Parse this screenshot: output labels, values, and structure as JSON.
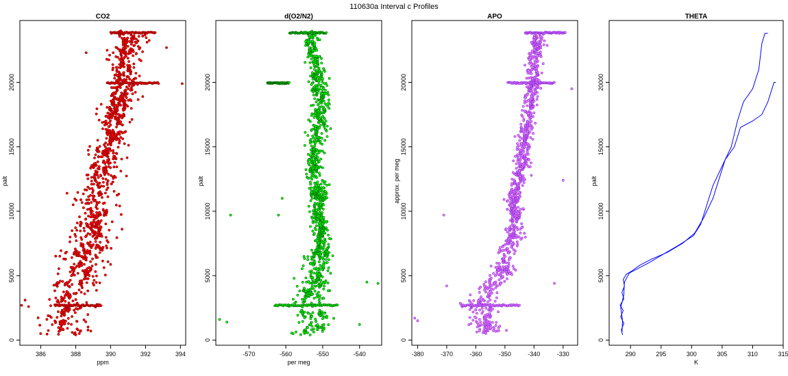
{
  "title": "110630a   Interval c Profiles",
  "chart_data": [
    {
      "type": "scatter",
      "title": "CO2",
      "xlabel": "ppm",
      "ylabel": "palt",
      "xlim": [
        384.8,
        394.3
      ],
      "ylim": [
        -400,
        24800
      ],
      "xticks": [
        386,
        388,
        390,
        392,
        394
      ],
      "yticks": [
        0,
        5000,
        10000,
        15000,
        20000
      ],
      "color": "#ff0000",
      "edge_color": "#8b0000",
      "profile": [
        [
          387.6,
          400
        ],
        [
          387.5,
          1500
        ],
        [
          387.7,
          2500
        ],
        [
          387.5,
          3500
        ],
        [
          388.2,
          5000
        ],
        [
          388.4,
          6500
        ],
        [
          388.9,
          8000
        ],
        [
          389.1,
          9500
        ],
        [
          389.0,
          11000
        ],
        [
          389.5,
          12500
        ],
        [
          389.8,
          14000
        ],
        [
          390.0,
          15500
        ],
        [
          390.2,
          17000
        ],
        [
          390.6,
          18500
        ],
        [
          391.0,
          20000
        ],
        [
          390.8,
          21500
        ],
        [
          391.1,
          23000
        ],
        [
          391.2,
          23800
        ]
      ],
      "spreads": [
        [
          2500,
          2.4
        ],
        [
          12000,
          1.8
        ],
        [
          20000,
          1.5
        ],
        [
          23500,
          1.5
        ]
      ],
      "level_bands": [
        {
          "y": 2700,
          "x": [
            386.8,
            389.5
          ]
        },
        {
          "y": 19950,
          "x": [
            389.8,
            392.8
          ]
        },
        {
          "y": 23850,
          "x": [
            390.0,
            392.6
          ]
        }
      ],
      "outliers": [
        [
          385.1,
          3100
        ],
        [
          385.3,
          2600
        ],
        [
          384.9,
          2700
        ],
        [
          394.1,
          19900
        ],
        [
          388.6,
          22300
        ],
        [
          387.5,
          11400
        ],
        [
          393.2,
          22700
        ]
      ]
    },
    {
      "type": "scatter",
      "title": "d(O2/N2)",
      "xlabel": "per meg",
      "ylabel": "palt",
      "xlim": [
        -579,
        -534
      ],
      "ylim": [
        -400,
        24800
      ],
      "xticks": [
        -570,
        -560,
        -550,
        -540
      ],
      "yticks": [
        0,
        5000,
        10000,
        15000,
        20000
      ],
      "color": "#00ff00",
      "edge_color": "#006400",
      "profile": [
        [
          -553,
          600
        ],
        [
          -552,
          1500
        ],
        [
          -554,
          2500
        ],
        [
          -553,
          3500
        ],
        [
          -552,
          5000
        ],
        [
          -551,
          6500
        ],
        [
          -550,
          8000
        ],
        [
          -551,
          9500
        ],
        [
          -551,
          11000
        ],
        [
          -552,
          12500
        ],
        [
          -552,
          14000
        ],
        [
          -552,
          15500
        ],
        [
          -551,
          17000
        ],
        [
          -550,
          18500
        ],
        [
          -551,
          20000
        ],
        [
          -552,
          21500
        ],
        [
          -553,
          23000
        ],
        [
          -553,
          23800
        ]
      ],
      "spreads": [
        [
          2500,
          9
        ],
        [
          8000,
          4
        ],
        [
          20000,
          4
        ],
        [
          23500,
          3
        ]
      ],
      "level_bands": [
        {
          "y": 2700,
          "x": [
            -563,
            -546
          ]
        },
        {
          "y": 19950,
          "x": [
            -565,
            -559
          ]
        },
        {
          "y": 23850,
          "x": [
            -559,
            -549
          ]
        }
      ],
      "outliers": [
        [
          -578,
          1600
        ],
        [
          -575,
          9700
        ],
        [
          -562,
          9700
        ],
        [
          -561,
          11000
        ],
        [
          -538,
          4500
        ],
        [
          -535,
          4400
        ],
        [
          -540,
          1200
        ],
        [
          -576,
          1400
        ]
      ]
    },
    {
      "type": "scatter",
      "title": "APO",
      "xlabel": "",
      "ylabel": "approx. per meg",
      "xlim": [
        -382,
        -325
      ],
      "ylim": [
        -400,
        24800
      ],
      "xticks": [
        -380,
        -370,
        -360,
        -350,
        -340,
        -330
      ],
      "yticks": [
        0,
        5000,
        10000,
        15000,
        20000
      ],
      "color": "#ee82ee",
      "edge_color": "#8a2be2",
      "profile": [
        [
          -355,
          600
        ],
        [
          -357,
          1500
        ],
        [
          -359,
          2500
        ],
        [
          -357,
          3500
        ],
        [
          -352,
          5000
        ],
        [
          -349,
          6500
        ],
        [
          -347,
          8000
        ],
        [
          -346,
          9500
        ],
        [
          -347,
          11000
        ],
        [
          -345,
          12500
        ],
        [
          -344,
          14000
        ],
        [
          -343,
          15500
        ],
        [
          -342,
          17000
        ],
        [
          -341,
          18500
        ],
        [
          -340,
          20000
        ],
        [
          -340,
          21500
        ],
        [
          -339,
          23000
        ],
        [
          -338,
          23800
        ]
      ],
      "spreads": [
        [
          2500,
          9
        ],
        [
          8000,
          5
        ],
        [
          20000,
          4
        ],
        [
          23500,
          4
        ]
      ],
      "level_bands": [
        {
          "y": 2700,
          "x": [
            -365,
            -345
          ]
        },
        {
          "y": 19950,
          "x": [
            -349,
            -333
          ]
        },
        {
          "y": 23850,
          "x": [
            -343,
            -329
          ]
        }
      ],
      "outliers": [
        [
          -381,
          1700
        ],
        [
          -380,
          1500
        ],
        [
          -371,
          9700
        ],
        [
          -370,
          4200
        ],
        [
          -327,
          19500
        ],
        [
          -330,
          12400
        ],
        [
          -333,
          4400
        ]
      ]
    },
    {
      "type": "line",
      "title": "THETA",
      "xlabel": "K",
      "ylabel": "palt",
      "xlim": [
        286.5,
        315
      ],
      "ylim": [
        -400,
        24800
      ],
      "xticks": [
        290,
        295,
        300,
        305,
        310,
        315
      ],
      "yticks": [
        0,
        5000,
        10000,
        15000,
        20000
      ],
      "color": "#0000ff",
      "series": [
        {
          "values": [
            [
              288.7,
              400
            ],
            [
              288.5,
              800
            ],
            [
              288.9,
              1300
            ],
            [
              288.4,
              1800
            ],
            [
              288.8,
              2300
            ],
            [
              288.3,
              2700
            ],
            [
              288.9,
              3200
            ],
            [
              288.6,
              3700
            ],
            [
              289.0,
              4200
            ],
            [
              288.8,
              4700
            ],
            [
              289.3,
              5100
            ],
            [
              290.0,
              5300
            ],
            [
              291.5,
              5800
            ],
            [
              293.5,
              6300
            ],
            [
              296.0,
              6800
            ],
            [
              298.5,
              7500
            ],
            [
              300.5,
              8300
            ],
            [
              302.0,
              9500
            ],
            [
              303.5,
              11000
            ],
            [
              304.5,
              12500
            ],
            [
              305.5,
              14000
            ],
            [
              307.0,
              15000
            ],
            [
              308.0,
              16500
            ],
            [
              310.0,
              17000
            ],
            [
              311.5,
              17500
            ],
            [
              312.5,
              18500
            ],
            [
              313.5,
              20000
            ],
            [
              313.8,
              20000
            ]
          ]
        },
        {
          "values": [
            [
              288.6,
              600
            ],
            [
              288.7,
              1500
            ],
            [
              288.4,
              2500
            ],
            [
              288.9,
              3500
            ],
            [
              289.0,
              4500
            ],
            [
              289.8,
              5200
            ],
            [
              291.0,
              5500
            ],
            [
              293.0,
              6000
            ],
            [
              295.5,
              6700
            ],
            [
              298.0,
              7400
            ],
            [
              300.3,
              8100
            ],
            [
              301.5,
              9000
            ],
            [
              302.5,
              10500
            ],
            [
              303.5,
              12000
            ],
            [
              305.0,
              13500
            ],
            [
              306.5,
              15000
            ],
            [
              307.5,
              17000
            ],
            [
              308.5,
              18500
            ],
            [
              310.0,
              19500
            ],
            [
              311.0,
              21000
            ],
            [
              311.5,
              23000
            ],
            [
              312.0,
              23800
            ],
            [
              312.5,
              23800
            ]
          ]
        }
      ]
    }
  ]
}
